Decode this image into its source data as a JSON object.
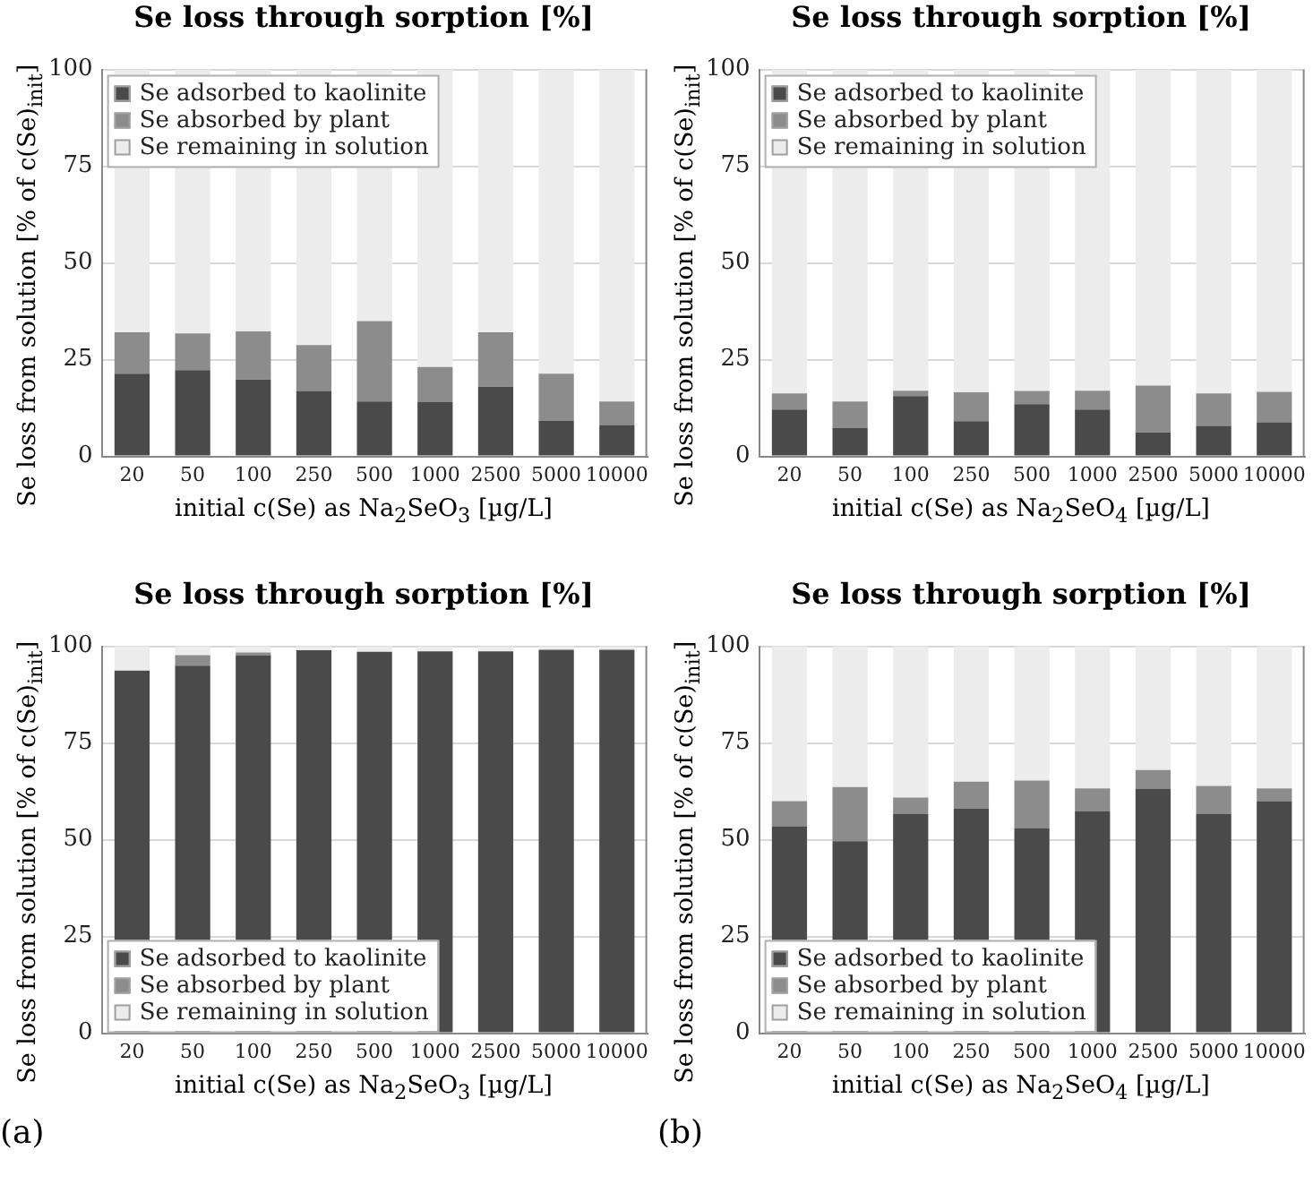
{
  "chart_data": [
    {
      "type": "bar",
      "title": "Se loss through sorption [%]",
      "xlabel": "initial c(Se) as Na$_{2}$SeO$_{3}$ [µg/L]",
      "ylabel": "Se loss from solution [% of c(Se)$_{init}$]",
      "categories": [
        "20",
        "50",
        "100",
        "250",
        "500",
        "1000",
        "2500",
        "5000",
        "10000"
      ],
      "stacked": true,
      "ylim": [
        0,
        100
      ],
      "yticks": [
        0,
        25,
        50,
        75,
        100
      ],
      "grid": "y",
      "legend": "top left",
      "series": [
        {
          "name": "Se adsorbed to kaolinite",
          "color": "#4a4a4a",
          "values": [
            21.4,
            22.3,
            19.9,
            16.9,
            14.2,
            14.0,
            18.0,
            9.2,
            8.1
          ]
        },
        {
          "name": "Se absorbed by plant",
          "color": "#8c8c8c",
          "values": [
            10.7,
            9.5,
            12.4,
            11.9,
            20.8,
            9.1,
            14.1,
            12.2,
            6.1
          ]
        },
        {
          "name": "Se remaining in solution",
          "color": "#ececec",
          "values": [
            67.9,
            68.2,
            67.7,
            71.2,
            65.0,
            76.9,
            67.9,
            78.6,
            85.8
          ]
        }
      ]
    },
    {
      "type": "bar",
      "title": "Se loss through sorption [%]",
      "xlabel": "initial c(Se) as Na$_{2}$SeO$_{4}$ [µg/L]",
      "ylabel": "Se loss from solution [% of c(Se)$_{init}$]",
      "categories": [
        "20",
        "50",
        "100",
        "250",
        "500",
        "1000",
        "2500",
        "5000",
        "10000"
      ],
      "stacked": true,
      "ylim": [
        0,
        100
      ],
      "yticks": [
        0,
        25,
        50,
        75,
        100
      ],
      "grid": "y",
      "legend": "top left",
      "series": [
        {
          "name": "Se adsorbed to kaolinite",
          "color": "#4a4a4a",
          "values": [
            12.1,
            7.4,
            15.6,
            9.1,
            13.5,
            12.1,
            6.2,
            7.9,
            8.8
          ]
        },
        {
          "name": "Se absorbed by plant",
          "color": "#8c8c8c",
          "values": [
            4.2,
            6.8,
            1.4,
            7.5,
            3.4,
            4.9,
            12.1,
            8.4,
            7.9
          ]
        },
        {
          "name": "Se remaining in solution",
          "color": "#ececec",
          "values": [
            83.7,
            85.8,
            83.0,
            83.4,
            83.1,
            83.0,
            81.7,
            83.7,
            83.3
          ]
        }
      ]
    },
    {
      "type": "bar",
      "title": "Se loss through sorption [%]",
      "xlabel": "initial c(Se) as Na$_{2}$SeO$_{3}$ [µg/L]",
      "ylabel": "Se loss from solution [% of c(Se)$_{init}$]",
      "categories": [
        "20",
        "50",
        "100",
        "250",
        "500",
        "1000",
        "2500",
        "5000",
        "10000"
      ],
      "stacked": true,
      "ylim": [
        0,
        100
      ],
      "yticks": [
        0,
        25,
        50,
        75,
        100
      ],
      "grid": "y",
      "legend": "bottom left",
      "annotations": [
        "(a)"
      ],
      "series": [
        {
          "name": "Se adsorbed to kaolinite",
          "color": "#4a4a4a",
          "values": [
            93.7,
            95.0,
            97.6,
            99.0,
            98.6,
            98.7,
            98.7,
            99.1,
            99.1
          ]
        },
        {
          "name": "Se absorbed by plant",
          "color": "#8c8c8c",
          "values": [
            null,
            2.7,
            0.8,
            null,
            null,
            null,
            null,
            null,
            null
          ]
        },
        {
          "name": "Se remaining in solution",
          "color": "#ececec",
          "values": [
            6.3,
            2.3,
            1.6,
            1.0,
            1.4,
            1.3,
            1.3,
            0.9,
            0.9
          ]
        }
      ]
    },
    {
      "type": "bar",
      "title": "Se loss through sorption [%]",
      "xlabel": "initial c(Se) as Na$_{2}$SeO$_{4}$ [µg/L]",
      "ylabel": "Se loss from solution [% of c(Se)$_{init}$]",
      "categories": [
        "20",
        "50",
        "100",
        "250",
        "500",
        "1000",
        "2500",
        "5000",
        "10000"
      ],
      "stacked": true,
      "ylim": [
        0,
        100
      ],
      "yticks": [
        0,
        25,
        50,
        75,
        100
      ],
      "grid": "y",
      "legend": "bottom left",
      "annotations": [
        "(b)"
      ],
      "series": [
        {
          "name": "Se adsorbed to kaolinite",
          "color": "#4a4a4a",
          "values": [
            53.5,
            49.6,
            56.6,
            58.0,
            52.9,
            57.3,
            63.2,
            56.6,
            60.0
          ]
        },
        {
          "name": "Se absorbed by plant",
          "color": "#8c8c8c",
          "values": [
            6.5,
            14.0,
            4.3,
            7.0,
            12.4,
            6.0,
            4.8,
            7.3,
            3.3
          ]
        },
        {
          "name": "Se remaining in solution",
          "color": "#ececec",
          "values": [
            40.0,
            36.4,
            39.1,
            35.0,
            34.7,
            36.7,
            32.0,
            36.1,
            36.7
          ]
        }
      ]
    }
  ]
}
